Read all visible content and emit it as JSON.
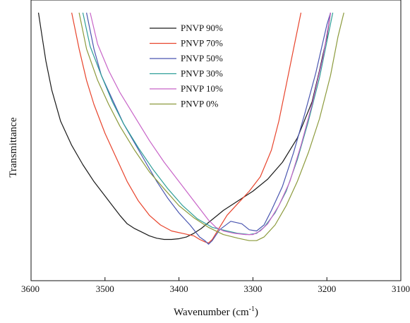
{
  "chart_data": {
    "type": "line",
    "xlabel": "Wavenumber (cm",
    "xlabel_sup": "-1",
    "xlabel_close": ")",
    "ylabel": "Transmittance",
    "xlim": [
      3600,
      3100
    ],
    "x_reversed": true,
    "ylim": [
      0,
      100
    ],
    "y_ticks_shown": false,
    "x_ticks": [
      3600,
      3500,
      3400,
      3300,
      3200,
      3100
    ],
    "legend_position": "top-center",
    "series": [
      {
        "name": "PNVP 90%",
        "color": "#1a1a1a",
        "points": [
          [
            3590,
            100
          ],
          [
            3585,
            90
          ],
          [
            3580,
            80
          ],
          [
            3572,
            68
          ],
          [
            3560,
            55
          ],
          [
            3545,
            45
          ],
          [
            3530,
            37
          ],
          [
            3515,
            30
          ],
          [
            3500,
            24
          ],
          [
            3490,
            20
          ],
          [
            3480,
            16
          ],
          [
            3470,
            12.5
          ],
          [
            3460,
            10.5
          ],
          [
            3450,
            9
          ],
          [
            3440,
            7.5
          ],
          [
            3430,
            6.5
          ],
          [
            3420,
            6
          ],
          [
            3410,
            6
          ],
          [
            3400,
            6.3
          ],
          [
            3390,
            7
          ],
          [
            3380,
            8.5
          ],
          [
            3370,
            10.5
          ],
          [
            3360,
            13
          ],
          [
            3350,
            15.5
          ],
          [
            3340,
            18
          ],
          [
            3320,
            22
          ],
          [
            3300,
            26
          ],
          [
            3280,
            31
          ],
          [
            3260,
            38
          ],
          [
            3240,
            48
          ],
          [
            3220,
            63
          ],
          [
            3210,
            76
          ],
          [
            3200,
            90
          ],
          [
            3195,
            100
          ]
        ]
      },
      {
        "name": "PNVP 70%",
        "color": "#e8442c",
        "points": [
          [
            3545,
            100
          ],
          [
            3535,
            85
          ],
          [
            3525,
            72
          ],
          [
            3515,
            62
          ],
          [
            3500,
            50
          ],
          [
            3485,
            40
          ],
          [
            3470,
            30
          ],
          [
            3455,
            22
          ],
          [
            3440,
            16
          ],
          [
            3425,
            12
          ],
          [
            3410,
            9.5
          ],
          [
            3395,
            8.5
          ],
          [
            3380,
            7.5
          ],
          [
            3372,
            6
          ],
          [
            3365,
            5
          ],
          [
            3360,
            4.5
          ],
          [
            3355,
            6
          ],
          [
            3345,
            11
          ],
          [
            3335,
            16
          ],
          [
            3320,
            21
          ],
          [
            3305,
            26
          ],
          [
            3290,
            32
          ],
          [
            3275,
            43
          ],
          [
            3265,
            55
          ],
          [
            3255,
            70
          ],
          [
            3245,
            85
          ],
          [
            3235,
            100
          ]
        ]
      },
      {
        "name": "PNVP 50%",
        "color": "#4a56b0",
        "points": [
          [
            3525,
            100
          ],
          [
            3515,
            85
          ],
          [
            3505,
            74
          ],
          [
            3490,
            64
          ],
          [
            3475,
            54
          ],
          [
            3460,
            46
          ],
          [
            3445,
            38
          ],
          [
            3430,
            30
          ],
          [
            3415,
            23
          ],
          [
            3400,
            17
          ],
          [
            3385,
            12
          ],
          [
            3372,
            7
          ],
          [
            3365,
            5.5
          ],
          [
            3360,
            4
          ],
          [
            3355,
            5.5
          ],
          [
            3345,
            10
          ],
          [
            3330,
            13.5
          ],
          [
            3315,
            12.5
          ],
          [
            3305,
            10
          ],
          [
            3295,
            9.5
          ],
          [
            3285,
            12
          ],
          [
            3275,
            18
          ],
          [
            3260,
            28
          ],
          [
            3245,
            42
          ],
          [
            3230,
            58
          ],
          [
            3215,
            75
          ],
          [
            3200,
            95
          ],
          [
            3195,
            100
          ]
        ]
      },
      {
        "name": "PNVP 30%",
        "color": "#2e9e98",
        "points": [
          [
            3530,
            100
          ],
          [
            3520,
            86
          ],
          [
            3505,
            74
          ],
          [
            3490,
            63
          ],
          [
            3475,
            54
          ],
          [
            3455,
            44
          ],
          [
            3435,
            35
          ],
          [
            3415,
            27
          ],
          [
            3395,
            20
          ],
          [
            3375,
            14.5
          ],
          [
            3355,
            11
          ],
          [
            3335,
            9.5
          ],
          [
            3320,
            8.5
          ],
          [
            3305,
            8
          ],
          [
            3295,
            8.5
          ],
          [
            3285,
            11
          ],
          [
            3270,
            17
          ],
          [
            3255,
            26
          ],
          [
            3240,
            39
          ],
          [
            3225,
            55
          ],
          [
            3210,
            73
          ],
          [
            3200,
            88
          ],
          [
            3192,
            100
          ]
        ]
      },
      {
        "name": "PNVP 10%",
        "color": "#c864c8",
        "points": [
          [
            3520,
            100
          ],
          [
            3510,
            87
          ],
          [
            3495,
            76
          ],
          [
            3480,
            67
          ],
          [
            3460,
            57
          ],
          [
            3440,
            47
          ],
          [
            3420,
            38
          ],
          [
            3400,
            30
          ],
          [
            3385,
            24
          ],
          [
            3370,
            18
          ],
          [
            3360,
            14
          ],
          [
            3350,
            11
          ],
          [
            3340,
            9.5
          ],
          [
            3325,
            8.5
          ],
          [
            3310,
            8
          ],
          [
            3300,
            8
          ],
          [
            3290,
            9.5
          ],
          [
            3280,
            12.5
          ],
          [
            3265,
            20
          ],
          [
            3250,
            30
          ],
          [
            3235,
            45
          ],
          [
            3220,
            62
          ],
          [
            3205,
            82
          ],
          [
            3195,
            100
          ]
        ]
      },
      {
        "name": "PNVP 0%",
        "color": "#8c9a3c",
        "points": [
          [
            3535,
            100
          ],
          [
            3525,
            85
          ],
          [
            3510,
            72
          ],
          [
            3495,
            62
          ],
          [
            3480,
            53
          ],
          [
            3460,
            43
          ],
          [
            3440,
            34
          ],
          [
            3420,
            27
          ],
          [
            3400,
            20
          ],
          [
            3380,
            15
          ],
          [
            3360,
            11
          ],
          [
            3340,
            8
          ],
          [
            3320,
            6.5
          ],
          [
            3305,
            5.5
          ],
          [
            3295,
            5.5
          ],
          [
            3285,
            7
          ],
          [
            3270,
            12
          ],
          [
            3255,
            20
          ],
          [
            3240,
            30
          ],
          [
            3225,
            42
          ],
          [
            3210,
            56
          ],
          [
            3195,
            74
          ],
          [
            3185,
            90
          ],
          [
            3177,
            100
          ]
        ]
      }
    ]
  }
}
